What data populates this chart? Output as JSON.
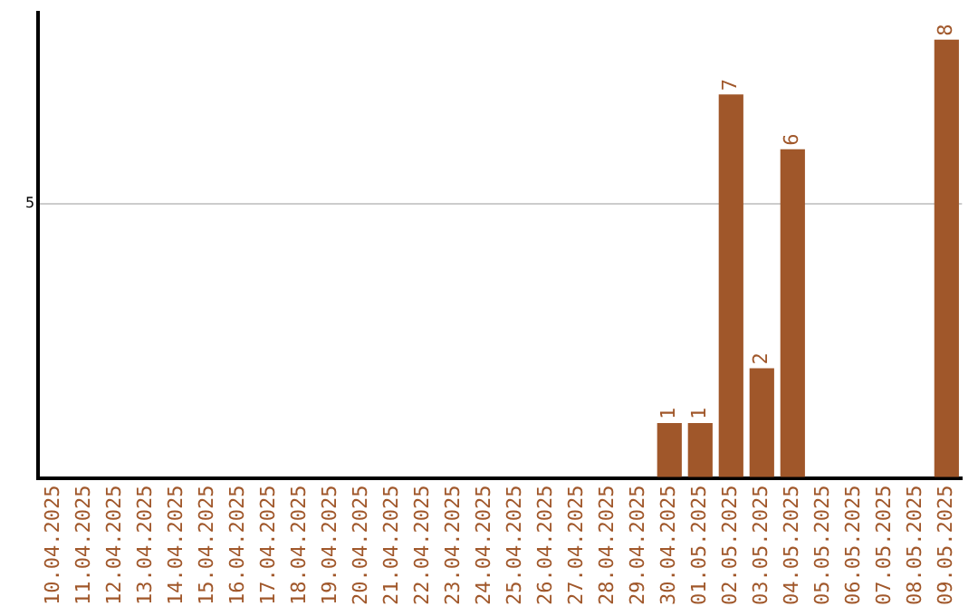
{
  "chart_data": {
    "type": "bar",
    "categories": [
      "10.04.2025",
      "11.04.2025",
      "12.04.2025",
      "13.04.2025",
      "14.04.2025",
      "15.04.2025",
      "16.04.2025",
      "17.04.2025",
      "18.04.2025",
      "19.04.2025",
      "20.04.2025",
      "21.04.2025",
      "22.04.2025",
      "23.04.2025",
      "24.04.2025",
      "25.04.2025",
      "26.04.2025",
      "27.04.2025",
      "28.04.2025",
      "29.04.2025",
      "30.04.2025",
      "01.05.2025",
      "02.05.2025",
      "03.05.2025",
      "04.05.2025",
      "05.05.2025",
      "06.05.2025",
      "07.05.2025",
      "08.05.2025",
      "09.05.2025"
    ],
    "values": [
      null,
      null,
      null,
      null,
      null,
      null,
      null,
      null,
      null,
      null,
      null,
      null,
      null,
      null,
      null,
      null,
      null,
      null,
      null,
      null,
      1,
      1,
      7,
      2,
      6,
      null,
      null,
      null,
      null,
      8
    ],
    "data_labels": true,
    "color": "#a0572a",
    "ylim": [
      0,
      8.5
    ],
    "yticks": [
      {
        "value": 0,
        "label": null
      },
      5
    ],
    "grid": "y",
    "legend": false
  }
}
